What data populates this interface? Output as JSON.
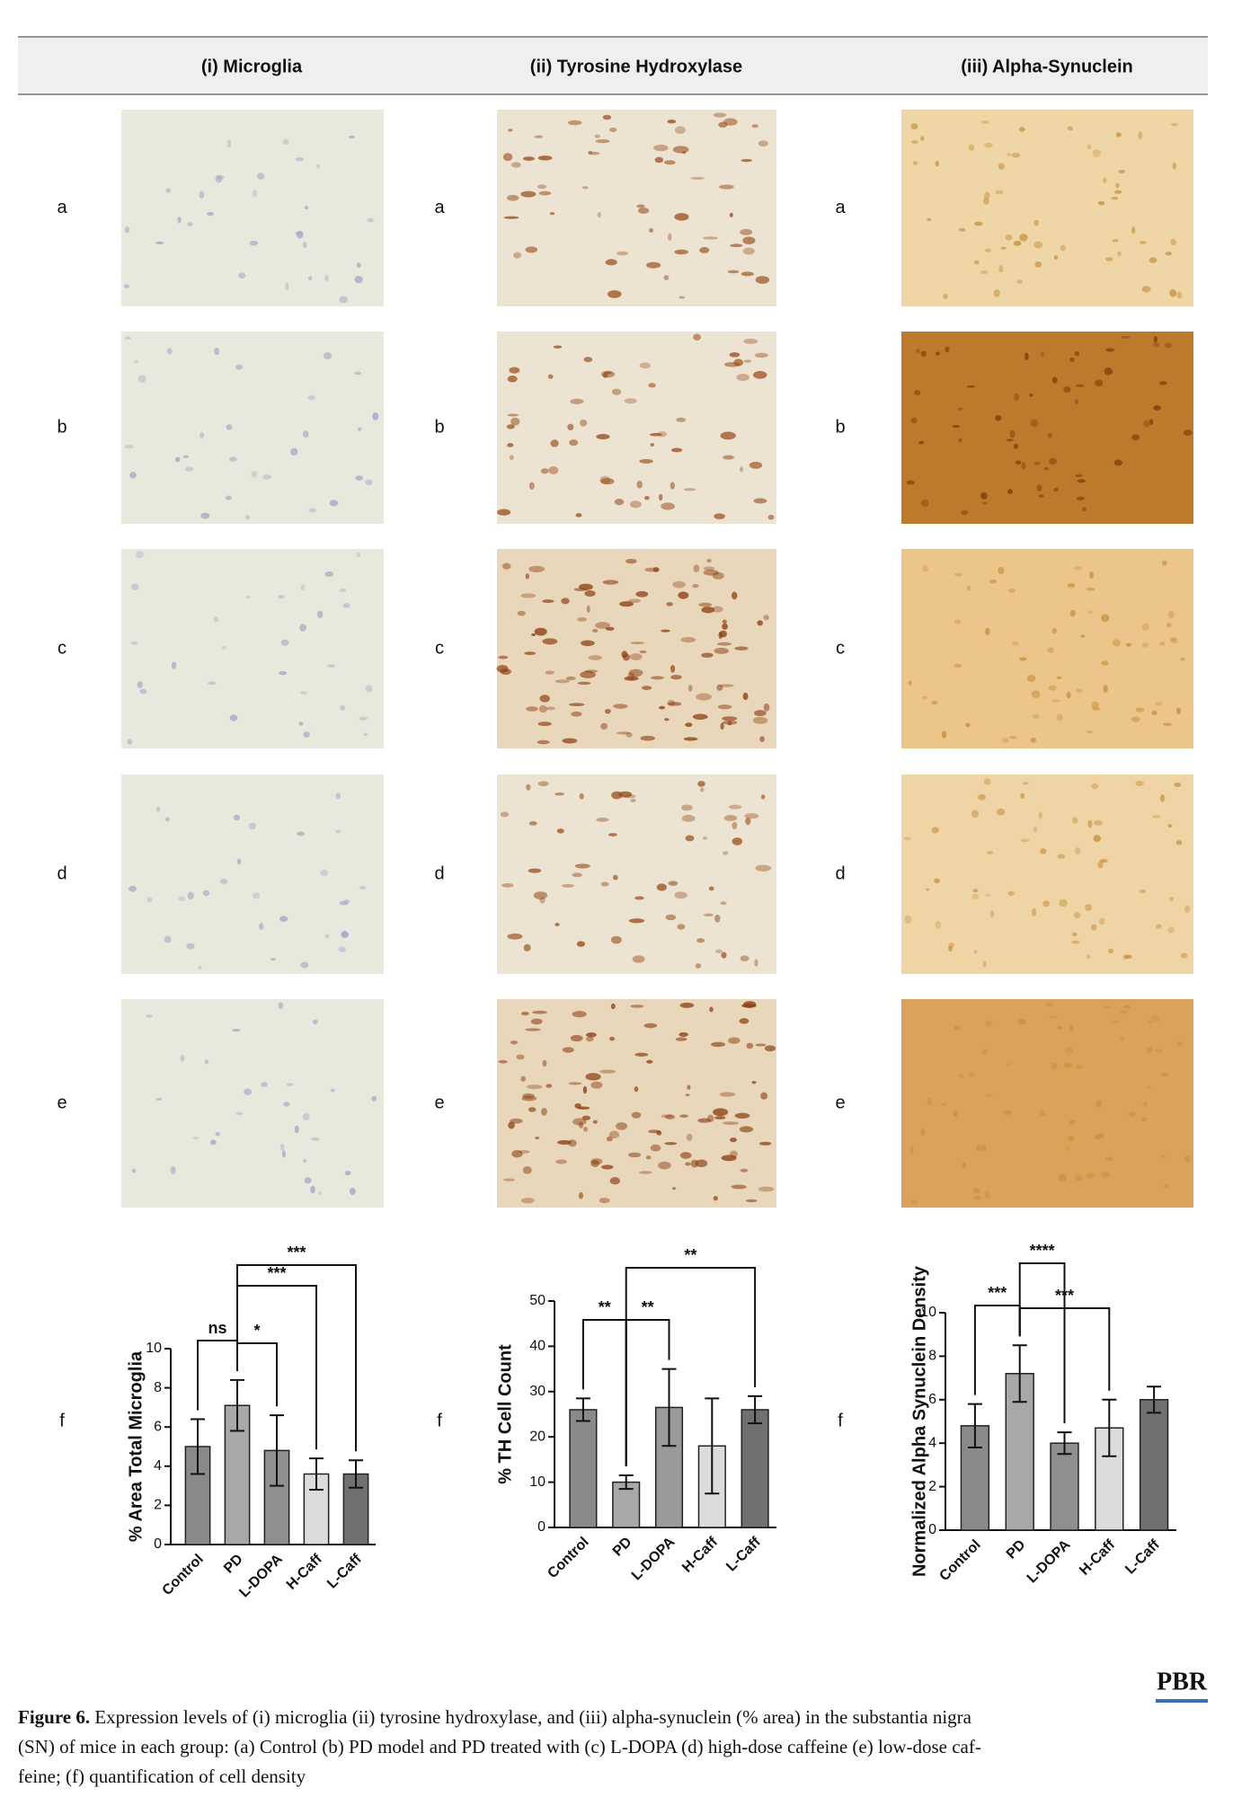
{
  "figure": {
    "columns": [
      "(i) Microglia",
      "(ii) Tyrosine Hydroxylase",
      "(iii) Alpha-Synuclein"
    ],
    "rows": [
      "a",
      "b",
      "c",
      "d",
      "e",
      "f"
    ],
    "logo": "PBR",
    "caption": {
      "label": "Figure 6.",
      "lines": [
        "Expression levels of (i) microglia (ii) tyrosine hydroxylase, and (iii) alpha-synuclein (% area) in the substantia nigra",
        "(SN) of mice in each group: (a) Control (b) PD model and PD treated with (c) L-DOPA (d) high-dose caffeine (e) low-dose caf-",
        "feine; (f) quantification of cell density"
      ]
    }
  },
  "chart_data": [
    {
      "type": "bar",
      "y_label": "% Area Total Microglia",
      "categories": [
        "Control",
        "PD",
        "L-DOPA",
        "H-Caff",
        "L-Caff"
      ],
      "values": [
        5.0,
        7.1,
        4.8,
        3.6,
        3.6
      ],
      "errors": [
        1.4,
        1.3,
        1.8,
        0.8,
        0.7
      ],
      "colors": [
        "#8a8a8a",
        "#a8a8a8",
        "#8f8f8f",
        "#dcdcdc",
        "#707070"
      ],
      "ylim": [
        0,
        10
      ],
      "yticks": [
        0,
        2,
        4,
        6,
        8,
        10
      ],
      "annotations": [
        {
          "text": "ns",
          "from": "Control",
          "to": "PD"
        },
        {
          "text": "*",
          "from": "PD",
          "to": "L-DOPA"
        },
        {
          "text": "***",
          "from": "PD",
          "to": "H-Caff"
        },
        {
          "text": "***",
          "from": "PD",
          "to": "L-Caff"
        }
      ]
    },
    {
      "type": "bar",
      "y_label": "% TH Cell Count",
      "categories": [
        "Control",
        "PD",
        "L-DOPA",
        "H-Caff",
        "L-Caff"
      ],
      "values": [
        26,
        10,
        26.5,
        18,
        26
      ],
      "errors": [
        2.5,
        1.5,
        8.5,
        10.5,
        3
      ],
      "colors": [
        "#8a8a8a",
        "#a8a8a8",
        "#9a9a9a",
        "#dcdcdc",
        "#707070"
      ],
      "ylim": [
        0,
        50
      ],
      "yticks": [
        0,
        10,
        20,
        30,
        40,
        50
      ],
      "annotations": [
        {
          "text": "**",
          "from": "Control",
          "to": "PD"
        },
        {
          "text": "**",
          "from": "PD",
          "to": "L-DOPA"
        },
        {
          "text": "**",
          "from": "PD",
          "to": "L-Caff"
        }
      ]
    },
    {
      "type": "bar",
      "y_label": "Normalized Alpha Synuclein Density",
      "categories": [
        "Control",
        "PD",
        "L-DOPA",
        "H-Caff",
        "L-Caff"
      ],
      "values": [
        4.8,
        7.2,
        4.0,
        4.7,
        6.0
      ],
      "errors": [
        1.0,
        1.3,
        0.5,
        1.3,
        0.6
      ],
      "colors": [
        "#8a8a8a",
        "#a8a8a8",
        "#8f8f8f",
        "#dcdcdc",
        "#707070"
      ],
      "ylim": [
        0,
        10
      ],
      "yticks": [
        0,
        2,
        4,
        6,
        8,
        10
      ],
      "annotations": [
        {
          "text": "***",
          "from": "Control",
          "to": "PD"
        },
        {
          "text": "****",
          "from": "PD",
          "to": "L-DOPA"
        },
        {
          "text": "***",
          "from": "PD",
          "to": "H-Caff"
        }
      ]
    }
  ]
}
